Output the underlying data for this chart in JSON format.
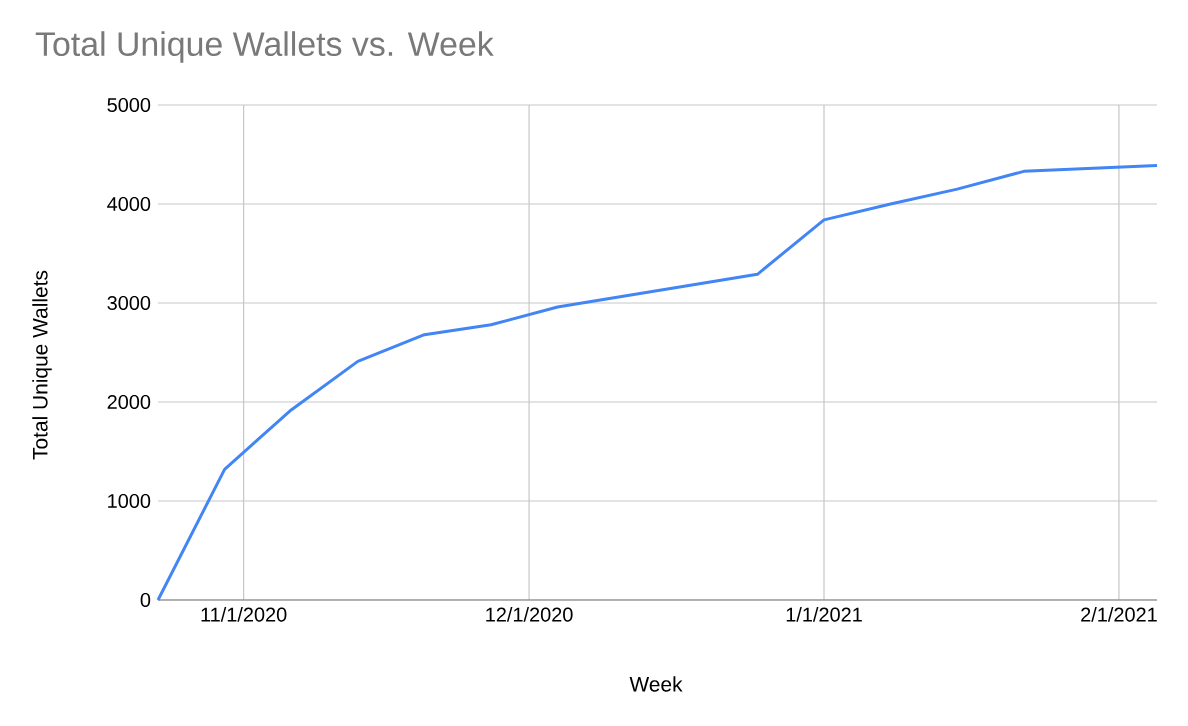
{
  "chart_data": {
    "type": "line",
    "title": "Total Unique Wallets vs. Week",
    "xlabel": "Week",
    "ylabel": "Total Unique Wallets",
    "x": [
      "2020-10-23",
      "2020-10-30",
      "2020-11-06",
      "2020-11-13",
      "2020-11-20",
      "2020-11-27",
      "2020-12-04",
      "2020-12-25",
      "2021-01-01",
      "2021-01-08",
      "2021-01-15",
      "2021-01-22",
      "2021-02-05"
    ],
    "series": [
      {
        "color": "#4285f4",
        "values": [
          0,
          1320,
          1920,
          2410,
          2680,
          2780,
          2960,
          3290,
          3840,
          4000,
          4150,
          4330,
          4390
        ]
      }
    ],
    "xlim": [
      "2020-10-23",
      "2021-02-05"
    ],
    "xticks": [
      {
        "value": "2020-11-01",
        "label": "11/1/2020"
      },
      {
        "value": "2020-12-01",
        "label": "12/1/2020"
      },
      {
        "value": "2021-01-01",
        "label": "1/1/2021"
      },
      {
        "value": "2021-02-01",
        "label": "2/1/2021"
      }
    ],
    "ylim": [
      0,
      5000
    ],
    "yticks": [
      0,
      1000,
      2000,
      3000,
      4000,
      5000
    ],
    "grid": true,
    "marker": "none",
    "line_style": "solid"
  }
}
